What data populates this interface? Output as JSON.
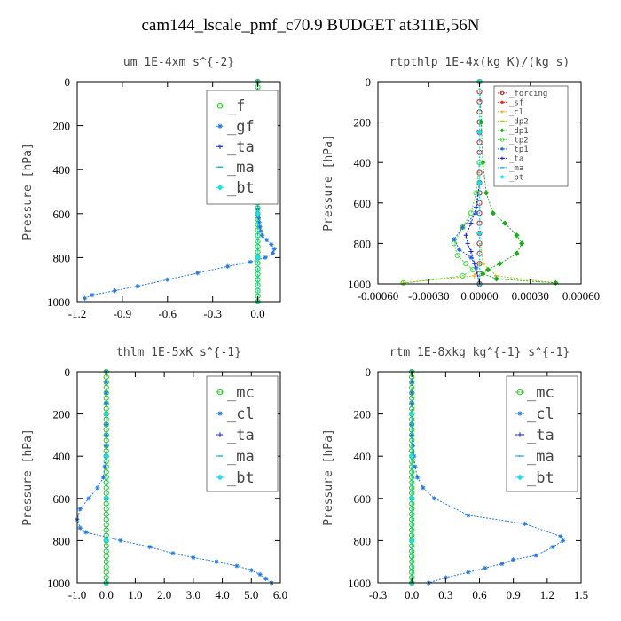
{
  "title": "cam144_lscale_pmf_c70.9  BUDGET at311E,56N",
  "chart_data": [
    {
      "type": "line",
      "title": "um  1E-4xm s^{-2}",
      "ylabel": "Pressure [hPa]",
      "xlim": [
        -1.2,
        0.15
      ],
      "ylim": [
        1000,
        0
      ],
      "xticks": [
        -1.2,
        -0.9,
        -0.6,
        -0.3,
        0.0
      ],
      "xtick_labels": [
        "-1.2",
        "-0.9",
        "-0.6",
        "-0.3",
        "0.0"
      ],
      "yticks": [
        0,
        200,
        400,
        600,
        800,
        1000
      ],
      "ytick_labels": [
        "0",
        "200",
        "400",
        "600",
        "800",
        "1000"
      ],
      "legend_position": "top-right",
      "legend_size": "large",
      "series": [
        {
          "name": "_f",
          "color": "#22cc22",
          "marker": "circle",
          "x": [
            0,
            0,
            0,
            0,
            0,
            0,
            0,
            0,
            0,
            0,
            0,
            0,
            0,
            0,
            0,
            0,
            0,
            0,
            0,
            0,
            0,
            0,
            0,
            0,
            0,
            0,
            0,
            0,
            0,
            0,
            0,
            0,
            0,
            0,
            0,
            0,
            0,
            0,
            0,
            0,
            0
          ],
          "y": [
            0,
            25,
            50,
            75,
            100,
            125,
            150,
            175,
            200,
            225,
            250,
            275,
            300,
            325,
            350,
            375,
            400,
            425,
            450,
            475,
            500,
            525,
            550,
            575,
            600,
            625,
            650,
            675,
            700,
            725,
            750,
            775,
            800,
            825,
            850,
            875,
            900,
            925,
            950,
            975,
            1000
          ]
        },
        {
          "name": "_gf",
          "color": "#2277dd",
          "marker": "star",
          "x": [
            0,
            0,
            0,
            0,
            0,
            0,
            0,
            0,
            0,
            0,
            0,
            0,
            0,
            0,
            0.005,
            0.01,
            0.015,
            0.02,
            0.03,
            0.06,
            0.09,
            0.11,
            0.1,
            0.05,
            -0.05,
            -0.2,
            -0.4,
            -0.6,
            -0.8,
            -0.95,
            -1.1,
            -1.15
          ],
          "y": [
            0,
            50,
            100,
            150,
            200,
            250,
            300,
            350,
            400,
            450,
            500,
            550,
            580,
            600,
            620,
            640,
            660,
            680,
            700,
            720,
            740,
            760,
            780,
            800,
            820,
            840,
            870,
            900,
            930,
            950,
            970,
            985
          ]
        },
        {
          "name": "_ta",
          "color": "#1122cc",
          "marker": "plus",
          "x": [
            0,
            0,
            0,
            0,
            0
          ],
          "y": [
            200,
            400,
            600,
            800,
            1000
          ]
        },
        {
          "name": "_ma",
          "color": "#22aacc",
          "marker": "dash",
          "x": [
            0,
            0,
            0,
            0,
            0
          ],
          "y": [
            200,
            400,
            600,
            800,
            1000
          ]
        },
        {
          "name": "_bt",
          "color": "#22ddee",
          "marker": "diamond",
          "x": [
            0,
            0,
            0,
            0,
            0
          ],
          "y": [
            200,
            400,
            600,
            800,
            1000
          ]
        }
      ]
    },
    {
      "type": "line",
      "title": "rtpthlp  1E-4x(kg K)/(kg s)",
      "ylabel": "Pressure [hPa]",
      "xlim": [
        -0.0006,
        0.0006
      ],
      "ylim": [
        1000,
        0
      ],
      "xticks": [
        -0.0006,
        -0.0003,
        0.0,
        0.0003,
        0.0006
      ],
      "xtick_labels": [
        "-0.00060",
        "-0.00030",
        "0.00000",
        "0.00030",
        "0.00060"
      ],
      "yticks": [
        0,
        200,
        400,
        600,
        800,
        1000
      ],
      "ytick_labels": [
        "0",
        "200",
        "400",
        "600",
        "800",
        "1000"
      ],
      "legend_position": "top-right",
      "legend_size": "small",
      "series": [
        {
          "name": "_forcing",
          "color": "#cc2222",
          "marker": "circle",
          "x": [
            0,
            0,
            0,
            0,
            0,
            0,
            0,
            0,
            0,
            0,
            0,
            0,
            0,
            0,
            0,
            0,
            0,
            0,
            0,
            0,
            0
          ],
          "y": [
            0,
            50,
            100,
            150,
            200,
            250,
            300,
            350,
            400,
            450,
            500,
            550,
            600,
            650,
            700,
            750,
            800,
            850,
            900,
            950,
            1000
          ]
        },
        {
          "name": "_sf",
          "color": "#dd3322",
          "marker": "star",
          "x": [
            0,
            0,
            0,
            0,
            0
          ],
          "y": [
            0,
            250,
            500,
            750,
            1000
          ]
        },
        {
          "name": "_cl",
          "color": "#ddaa22",
          "marker": "plus",
          "x": [
            0,
            0,
            0,
            0,
            0,
            -3e-05,
            -0.00045
          ],
          "y": [
            0,
            250,
            500,
            750,
            900,
            960,
            995
          ]
        },
        {
          "name": "_dp2",
          "color": "#aacc22",
          "marker": "dash",
          "x": [
            0,
            0,
            0,
            0,
            2e-05,
            0.0001,
            0.00045
          ],
          "y": [
            0,
            250,
            500,
            750,
            900,
            960,
            995
          ]
        },
        {
          "name": "_dp1",
          "color": "#22aa22",
          "marker": "diamond",
          "x": [
            0,
            1e-05,
            2e-05,
            4e-05,
            8e-05,
            0.00015,
            0.00022,
            0.00025,
            0.00022,
            0.00012,
            5e-05,
            2e-05,
            0.0001,
            0.00045
          ],
          "y": [
            0,
            200,
            400,
            550,
            650,
            700,
            760,
            800,
            850,
            900,
            930,
            950,
            975,
            995
          ]
        },
        {
          "name": "_tp2",
          "color": "#44dd44",
          "marker": "circle",
          "x": [
            0,
            0,
            -2e-05,
            -5e-05,
            -0.0001,
            -0.00015,
            -0.00013,
            -8e-05,
            -4e-05,
            -0.0001,
            -0.00045
          ],
          "y": [
            0,
            400,
            550,
            650,
            720,
            800,
            860,
            900,
            930,
            960,
            995
          ]
        },
        {
          "name": "_tp1",
          "color": "#2266dd",
          "marker": "star",
          "x": [
            0,
            -2e-05,
            -0.0001,
            -0.00015,
            -0.00012,
            -5e-05,
            -2e-05,
            0
          ],
          "y": [
            500,
            650,
            720,
            780,
            830,
            870,
            920,
            1000
          ]
        },
        {
          "name": "_ta",
          "color": "#1122cc",
          "marker": "plus",
          "x": [
            0,
            -2e-05,
            -5e-05,
            -8e-05,
            -7e-05,
            -5e-05,
            -3e-05,
            0
          ],
          "y": [
            500,
            620,
            700,
            760,
            800,
            840,
            900,
            1000
          ]
        },
        {
          "name": "_ma",
          "color": "#22aacc",
          "marker": "dash",
          "x": [
            0,
            0,
            0,
            0,
            0
          ],
          "y": [
            0,
            250,
            500,
            750,
            1000
          ]
        },
        {
          "name": "_bt",
          "color": "#22ddee",
          "marker": "diamond",
          "x": [
            0,
            0,
            0,
            0,
            0
          ],
          "y": [
            0,
            250,
            500,
            750,
            1000
          ]
        }
      ]
    },
    {
      "type": "line",
      "title": "thlm  1E-5xK s^{-1}",
      "ylabel": "Pressure [hPa]",
      "xlim": [
        -1.0,
        6.0
      ],
      "ylim": [
        1000,
        0
      ],
      "xticks": [
        -1.0,
        0.0,
        1.0,
        2.0,
        3.0,
        4.0,
        5.0,
        6.0
      ],
      "xtick_labels": [
        "-1.0",
        "0.0",
        "1.0",
        "2.0",
        "3.0",
        "4.0",
        "5.0",
        "6.0"
      ],
      "yticks": [
        0,
        200,
        400,
        600,
        800,
        1000
      ],
      "ytick_labels": [
        "0",
        "200",
        "400",
        "600",
        "800",
        "1000"
      ],
      "legend_position": "top-right",
      "legend_size": "large",
      "series": [
        {
          "name": "_mc",
          "color": "#22cc22",
          "marker": "circle",
          "x": [
            0,
            0,
            0,
            0,
            0,
            0,
            0,
            0,
            0,
            0,
            0,
            0,
            0,
            0,
            0,
            0,
            0,
            0,
            0,
            0,
            0,
            0,
            0,
            0,
            0,
            0,
            0,
            0,
            0,
            0,
            0,
            0,
            0,
            0,
            0,
            0,
            0,
            0,
            0,
            0,
            0
          ],
          "y": [
            0,
            25,
            50,
            75,
            100,
            125,
            150,
            175,
            200,
            225,
            250,
            275,
            300,
            325,
            350,
            375,
            400,
            425,
            450,
            475,
            500,
            525,
            550,
            575,
            600,
            625,
            650,
            675,
            700,
            725,
            750,
            775,
            800,
            825,
            850,
            875,
            900,
            925,
            950,
            975,
            1000
          ]
        },
        {
          "name": "_cl",
          "color": "#2277dd",
          "marker": "star",
          "x": [
            0,
            0,
            0,
            0,
            0,
            0,
            0,
            0,
            -0.02,
            -0.05,
            -0.1,
            -0.3,
            -0.6,
            -0.9,
            -1.0,
            -0.9,
            -0.7,
            0.5,
            1.5,
            2.3,
            3.0,
            3.8,
            4.5,
            5.0,
            5.3,
            5.5,
            5.7
          ],
          "y": [
            0,
            50,
            100,
            150,
            200,
            250,
            300,
            350,
            400,
            450,
            500,
            550,
            600,
            650,
            700,
            740,
            760,
            800,
            830,
            860,
            880,
            900,
            920,
            940,
            960,
            980,
            1000
          ]
        },
        {
          "name": "_ta",
          "color": "#1122cc",
          "marker": "plus",
          "x": [
            0,
            0,
            0,
            0,
            0
          ],
          "y": [
            200,
            400,
            600,
            800,
            1000
          ]
        },
        {
          "name": "_ma",
          "color": "#22aacc",
          "marker": "dash",
          "x": [
            0,
            0,
            0,
            0,
            0
          ],
          "y": [
            200,
            400,
            600,
            800,
            1000
          ]
        },
        {
          "name": "_bt",
          "color": "#22ddee",
          "marker": "diamond",
          "x": [
            0,
            0,
            0,
            0,
            0
          ],
          "y": [
            200,
            400,
            600,
            800,
            1000
          ]
        }
      ]
    },
    {
      "type": "line",
      "title": "rtm  1E-8xkg kg^{-1} s^{-1}",
      "ylabel": "Pressure [hPa]",
      "xlim": [
        -0.3,
        1.5
      ],
      "ylim": [
        1000,
        0
      ],
      "xticks": [
        -0.3,
        0.0,
        0.3,
        0.6,
        0.9,
        1.2,
        1.5
      ],
      "xtick_labels": [
        "-0.3",
        "0.0",
        "0.3",
        "0.6",
        "0.9",
        "1.2",
        "1.5"
      ],
      "yticks": [
        0,
        200,
        400,
        600,
        800,
        1000
      ],
      "ytick_labels": [
        "0",
        "200",
        "400",
        "600",
        "800",
        "1000"
      ],
      "legend_position": "top-right",
      "legend_size": "large",
      "series": [
        {
          "name": "_mc",
          "color": "#22cc22",
          "marker": "circle",
          "x": [
            0,
            0,
            0,
            0,
            0,
            0,
            0,
            0,
            0,
            0,
            0,
            0,
            0,
            0,
            0,
            0,
            0,
            0,
            0,
            0,
            0,
            0,
            0,
            0,
            0,
            0,
            0,
            0,
            0,
            0,
            0,
            0,
            0,
            0,
            0,
            0,
            0,
            0,
            0,
            0,
            0
          ],
          "y": [
            0,
            25,
            50,
            75,
            100,
            125,
            150,
            175,
            200,
            225,
            250,
            275,
            300,
            325,
            350,
            375,
            400,
            425,
            450,
            475,
            500,
            525,
            550,
            575,
            600,
            625,
            650,
            675,
            700,
            725,
            750,
            775,
            800,
            825,
            850,
            875,
            900,
            925,
            950,
            975,
            1000
          ]
        },
        {
          "name": "_cl",
          "color": "#2277dd",
          "marker": "star",
          "x": [
            0,
            0,
            0,
            0,
            0,
            0,
            0,
            0.01,
            0.02,
            0.03,
            0.05,
            0.1,
            0.2,
            0.5,
            1.0,
            1.32,
            1.34,
            1.25,
            1.1,
            0.9,
            0.8,
            0.65,
            0.5,
            0.3,
            0.15
          ],
          "y": [
            0,
            50,
            100,
            150,
            200,
            250,
            300,
            350,
            400,
            450,
            500,
            550,
            600,
            680,
            720,
            780,
            800,
            830,
            870,
            890,
            910,
            930,
            950,
            975,
            1000
          ]
        },
        {
          "name": "_ta",
          "color": "#1122cc",
          "marker": "plus",
          "x": [
            0,
            0,
            0,
            0,
            0
          ],
          "y": [
            200,
            400,
            600,
            800,
            1000
          ]
        },
        {
          "name": "_ma",
          "color": "#22aacc",
          "marker": "dash",
          "x": [
            0,
            0,
            0,
            0,
            0
          ],
          "y": [
            200,
            400,
            600,
            800,
            1000
          ]
        },
        {
          "name": "_bt",
          "color": "#22ddee",
          "marker": "diamond",
          "x": [
            0,
            0,
            0,
            0,
            0
          ],
          "y": [
            200,
            400,
            600,
            800,
            1000
          ]
        }
      ]
    }
  ]
}
